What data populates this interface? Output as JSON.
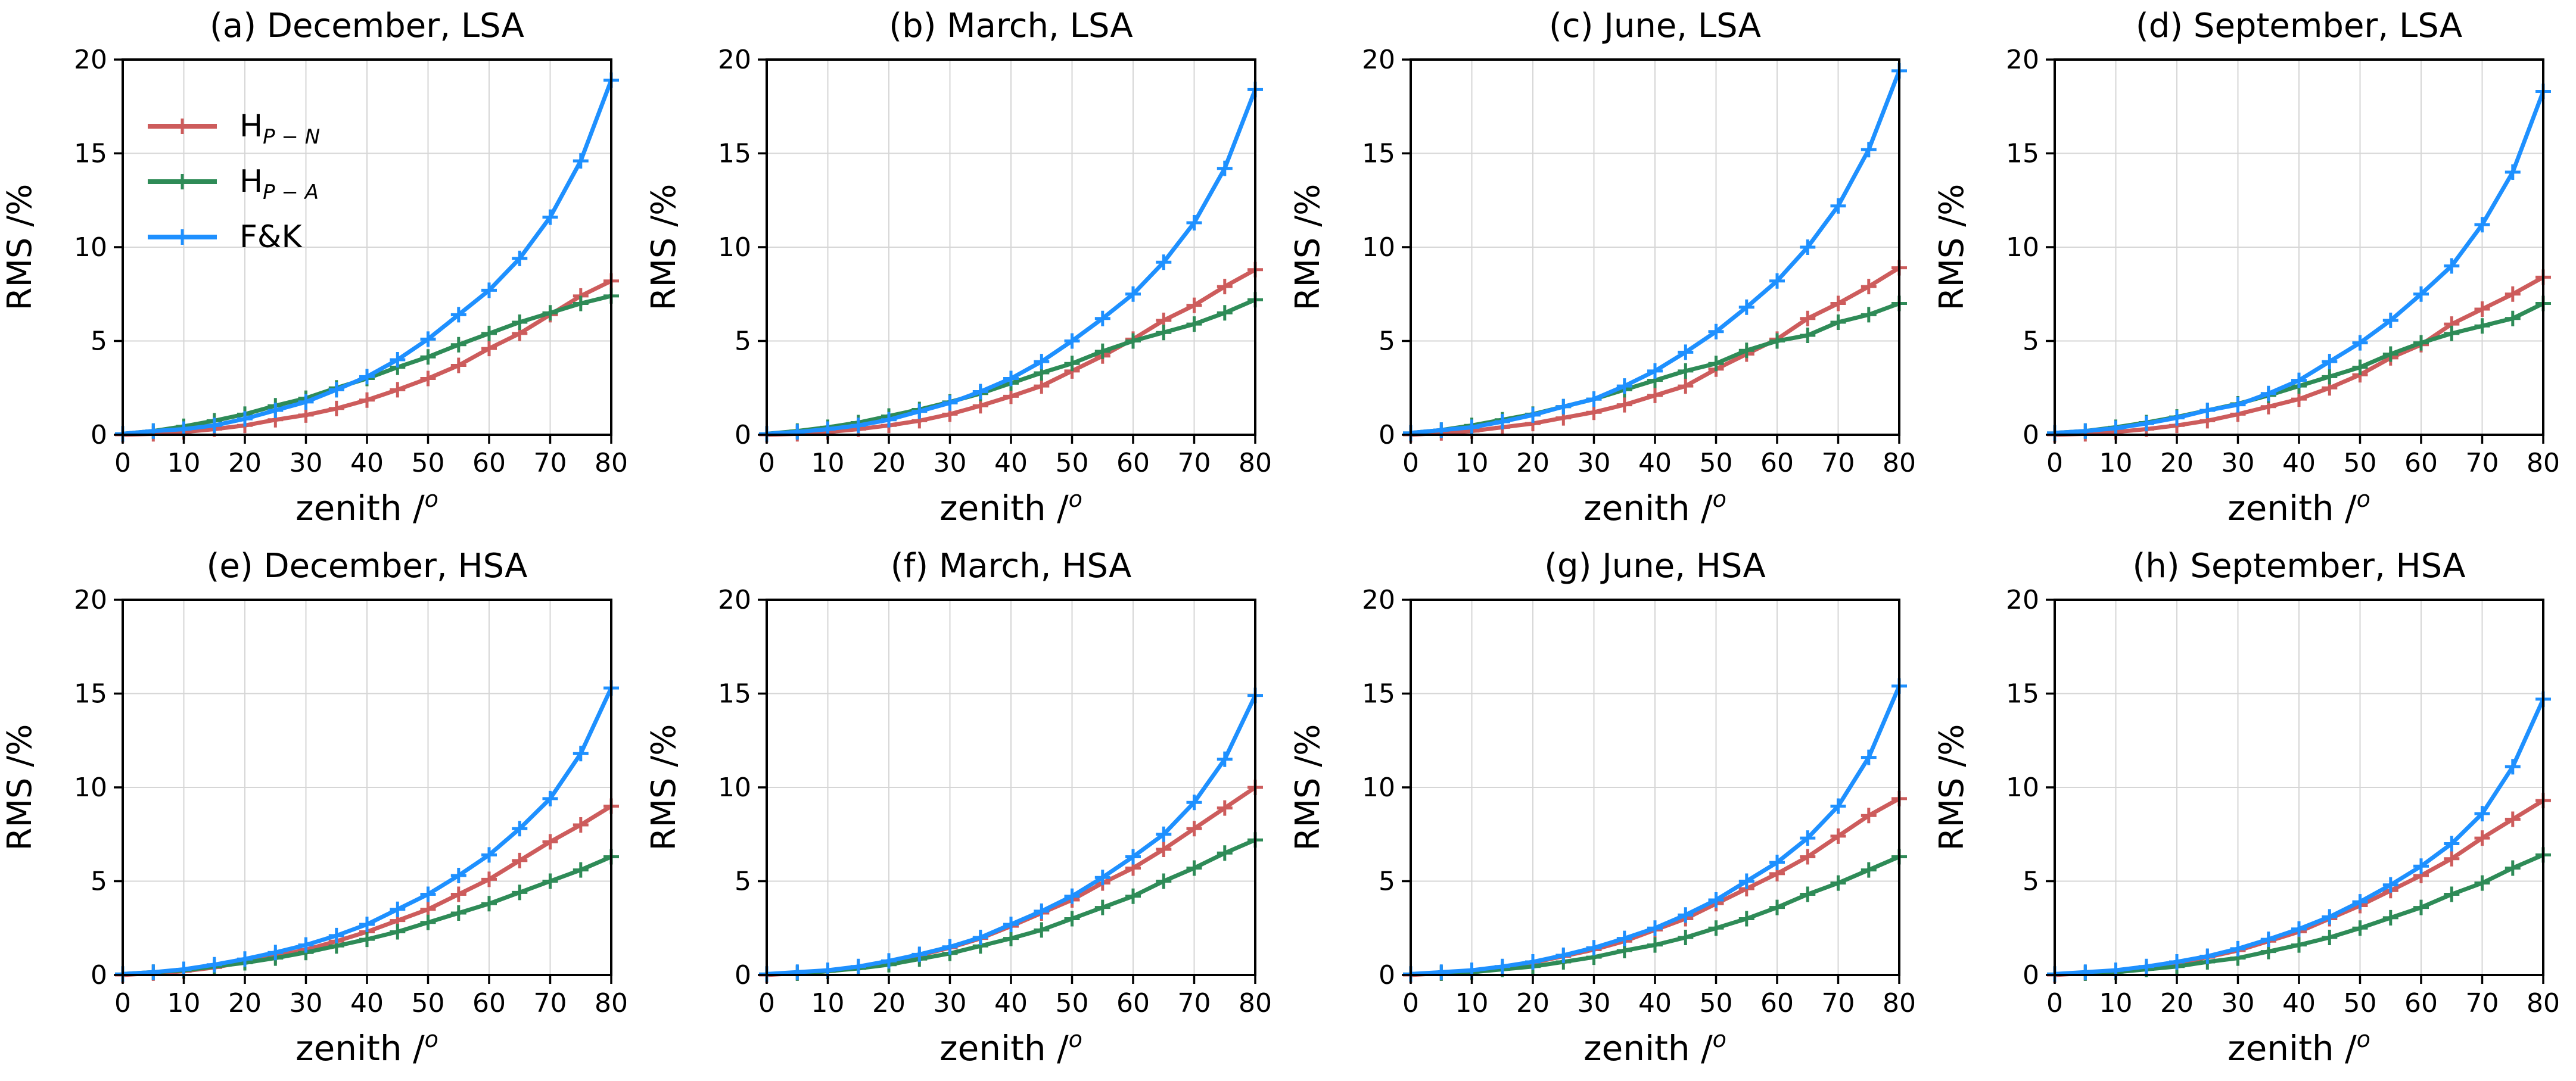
{
  "page": {
    "background": "#FFFFFF"
  },
  "colors": {
    "hpn": "#CD5C5C",
    "hpa": "#2E8B57",
    "fk": "#1E90FF",
    "grid": "#D6D6D6",
    "spine": "#000000",
    "text": "#000000"
  },
  "axes": {
    "xlabel_base": "zenith /",
    "xlabel_sup": "o",
    "ylabel": "RMS /%",
    "xlim": [
      0,
      80
    ],
    "ylim": [
      0,
      20
    ],
    "x_ticks": [
      0,
      10,
      20,
      30,
      40,
      50,
      60,
      70,
      80
    ],
    "y_ticks": [
      0,
      5,
      10,
      15,
      20
    ],
    "grid": true
  },
  "legend": {
    "position": "upper-left",
    "entries": [
      {
        "key": "hpn",
        "base": "H",
        "sub": "P − N"
      },
      {
        "key": "hpa",
        "base": "H",
        "sub": "P − A"
      },
      {
        "key": "fk",
        "base": "F&K",
        "sub": ""
      }
    ]
  },
  "chart_data": [
    {
      "id": "a",
      "type": "line",
      "title": "(a) December, LSA",
      "show_legend": true,
      "x": [
        0,
        5,
        10,
        15,
        20,
        25,
        30,
        35,
        40,
        45,
        50,
        55,
        60,
        65,
        70,
        75,
        80
      ],
      "series": [
        {
          "key": "hpn",
          "name": "H_P-N",
          "values": [
            0,
            0.05,
            0.15,
            0.3,
            0.5,
            0.8,
            1.05,
            1.4,
            1.85,
            2.4,
            3.0,
            3.7,
            4.6,
            5.4,
            6.4,
            7.4,
            8.2
          ]
        },
        {
          "key": "hpa",
          "name": "H_P-A",
          "values": [
            0.05,
            0.2,
            0.45,
            0.75,
            1.1,
            1.55,
            1.95,
            2.5,
            3.0,
            3.6,
            4.15,
            4.8,
            5.4,
            6.0,
            6.5,
            7.0,
            7.4
          ]
        },
        {
          "key": "fk",
          "name": "F&K",
          "values": [
            0.05,
            0.2,
            0.3,
            0.5,
            0.85,
            1.3,
            1.75,
            2.4,
            3.1,
            4.0,
            5.1,
            6.4,
            7.7,
            9.4,
            11.6,
            14.6,
            18.9
          ]
        }
      ]
    },
    {
      "id": "b",
      "type": "line",
      "title": "(b) March, LSA",
      "show_legend": false,
      "x": [
        0,
        5,
        10,
        15,
        20,
        25,
        30,
        35,
        40,
        45,
        50,
        55,
        60,
        65,
        70,
        75,
        80
      ],
      "series": [
        {
          "key": "hpn",
          "name": "H_P-N",
          "values": [
            0,
            0.05,
            0.15,
            0.3,
            0.5,
            0.75,
            1.1,
            1.55,
            2.05,
            2.6,
            3.4,
            4.2,
            5.1,
            6.1,
            6.9,
            7.9,
            8.8
          ]
        },
        {
          "key": "hpa",
          "name": "H_P-A",
          "values": [
            0.05,
            0.2,
            0.4,
            0.65,
            1.0,
            1.35,
            1.75,
            2.2,
            2.75,
            3.3,
            3.8,
            4.45,
            5.0,
            5.45,
            5.9,
            6.5,
            7.2
          ]
        },
        {
          "key": "fk",
          "name": "F&K",
          "values": [
            0.05,
            0.15,
            0.3,
            0.5,
            0.8,
            1.25,
            1.7,
            2.3,
            3.0,
            3.9,
            5.0,
            6.2,
            7.5,
            9.2,
            11.3,
            14.2,
            18.4
          ]
        }
      ]
    },
    {
      "id": "c",
      "type": "line",
      "title": "(c) June, LSA",
      "show_legend": false,
      "x": [
        0,
        5,
        10,
        15,
        20,
        25,
        30,
        35,
        40,
        45,
        50,
        55,
        60,
        65,
        70,
        75,
        80
      ],
      "series": [
        {
          "key": "hpn",
          "name": "H_P-N",
          "values": [
            0,
            0.1,
            0.2,
            0.4,
            0.6,
            0.9,
            1.2,
            1.6,
            2.1,
            2.6,
            3.5,
            4.3,
            5.1,
            6.2,
            7.0,
            7.9,
            8.9
          ]
        },
        {
          "key": "hpa",
          "name": "H_P-A",
          "values": [
            0.1,
            0.25,
            0.5,
            0.8,
            1.1,
            1.5,
            1.9,
            2.4,
            2.9,
            3.4,
            3.8,
            4.5,
            5.0,
            5.3,
            6.0,
            6.4,
            7.0
          ]
        },
        {
          "key": "fk",
          "name": "F&K",
          "values": [
            0.1,
            0.25,
            0.4,
            0.7,
            1.05,
            1.5,
            1.9,
            2.6,
            3.4,
            4.4,
            5.5,
            6.8,
            8.2,
            10.0,
            12.2,
            15.2,
            19.4
          ]
        }
      ]
    },
    {
      "id": "d",
      "type": "line",
      "title": "(d) September, LSA",
      "show_legend": false,
      "x": [
        0,
        5,
        10,
        15,
        20,
        25,
        30,
        35,
        40,
        45,
        50,
        55,
        60,
        65,
        70,
        75,
        80
      ],
      "series": [
        {
          "key": "hpn",
          "name": "H_P-N",
          "values": [
            0,
            0.05,
            0.15,
            0.3,
            0.5,
            0.75,
            1.1,
            1.5,
            1.9,
            2.5,
            3.2,
            4.1,
            4.8,
            5.9,
            6.7,
            7.5,
            8.4
          ]
        },
        {
          "key": "hpa",
          "name": "H_P-A",
          "values": [
            0.1,
            0.2,
            0.4,
            0.65,
            0.95,
            1.3,
            1.65,
            2.1,
            2.6,
            3.1,
            3.6,
            4.3,
            4.9,
            5.4,
            5.8,
            6.2,
            7.0
          ]
        },
        {
          "key": "fk",
          "name": "F&K",
          "values": [
            0.1,
            0.2,
            0.35,
            0.6,
            0.9,
            1.3,
            1.6,
            2.2,
            2.9,
            3.9,
            4.9,
            6.1,
            7.5,
            9.0,
            11.2,
            14.0,
            18.3
          ]
        }
      ]
    },
    {
      "id": "e",
      "type": "line",
      "title": "(e) December, HSA",
      "show_legend": false,
      "x": [
        0,
        5,
        10,
        15,
        20,
        25,
        30,
        35,
        40,
        45,
        50,
        55,
        60,
        65,
        70,
        75,
        80
      ],
      "series": [
        {
          "key": "hpn",
          "name": "H_P-N",
          "values": [
            0,
            0.1,
            0.2,
            0.4,
            0.7,
            1.0,
            1.35,
            1.8,
            2.3,
            2.9,
            3.5,
            4.3,
            5.1,
            6.1,
            7.1,
            8.0,
            9.0
          ]
        },
        {
          "key": "hpa",
          "name": "H_P-A",
          "values": [
            0.05,
            0.15,
            0.25,
            0.45,
            0.65,
            0.9,
            1.2,
            1.55,
            1.9,
            2.3,
            2.8,
            3.3,
            3.8,
            4.4,
            5.0,
            5.6,
            6.3
          ]
        },
        {
          "key": "fk",
          "name": "F&K",
          "values": [
            0.05,
            0.15,
            0.3,
            0.55,
            0.85,
            1.2,
            1.6,
            2.1,
            2.7,
            3.5,
            4.3,
            5.3,
            6.4,
            7.8,
            9.4,
            11.8,
            15.3
          ]
        }
      ]
    },
    {
      "id": "f",
      "type": "line",
      "title": "(f) March, HSA",
      "show_legend": false,
      "x": [
        0,
        5,
        10,
        15,
        20,
        25,
        30,
        35,
        40,
        45,
        50,
        55,
        60,
        65,
        70,
        75,
        80
      ],
      "series": [
        {
          "key": "hpn",
          "name": "H_P-N",
          "values": [
            0,
            0.1,
            0.2,
            0.4,
            0.7,
            1.05,
            1.45,
            1.95,
            2.6,
            3.3,
            4.0,
            4.9,
            5.7,
            6.7,
            7.8,
            8.9,
            10.0
          ]
        },
        {
          "key": "hpa",
          "name": "H_P-A",
          "values": [
            0.05,
            0.1,
            0.2,
            0.35,
            0.55,
            0.85,
            1.15,
            1.55,
            1.95,
            2.4,
            3.0,
            3.6,
            4.2,
            5.0,
            5.7,
            6.5,
            7.2
          ]
        },
        {
          "key": "fk",
          "name": "F&K",
          "values": [
            0.05,
            0.15,
            0.25,
            0.45,
            0.75,
            1.1,
            1.5,
            2.0,
            2.7,
            3.4,
            4.2,
            5.2,
            6.3,
            7.5,
            9.2,
            11.5,
            14.9
          ]
        }
      ]
    },
    {
      "id": "g",
      "type": "line",
      "title": "(g) June, HSA",
      "show_legend": false,
      "x": [
        0,
        5,
        10,
        15,
        20,
        25,
        30,
        35,
        40,
        45,
        50,
        55,
        60,
        65,
        70,
        75,
        80
      ],
      "series": [
        {
          "key": "hpn",
          "name": "H_P-N",
          "values": [
            0,
            0.1,
            0.2,
            0.4,
            0.65,
            1.0,
            1.35,
            1.8,
            2.4,
            3.0,
            3.8,
            4.6,
            5.4,
            6.3,
            7.4,
            8.5,
            9.4
          ]
        },
        {
          "key": "hpa",
          "name": "H_P-A",
          "values": [
            0.05,
            0.1,
            0.15,
            0.3,
            0.45,
            0.7,
            0.95,
            1.3,
            1.6,
            2.0,
            2.5,
            3.0,
            3.6,
            4.3,
            4.9,
            5.6,
            6.3
          ]
        },
        {
          "key": "fk",
          "name": "F&K",
          "values": [
            0.05,
            0.15,
            0.25,
            0.45,
            0.7,
            1.05,
            1.45,
            1.95,
            2.5,
            3.2,
            4.0,
            5.0,
            6.0,
            7.3,
            9.0,
            11.6,
            15.4
          ]
        }
      ]
    },
    {
      "id": "h",
      "type": "line",
      "title": "(h) September, HSA",
      "show_legend": false,
      "x": [
        0,
        5,
        10,
        15,
        20,
        25,
        30,
        35,
        40,
        45,
        50,
        55,
        60,
        65,
        70,
        75,
        80
      ],
      "series": [
        {
          "key": "hpn",
          "name": "H_P-N",
          "values": [
            0,
            0.1,
            0.2,
            0.35,
            0.6,
            0.95,
            1.3,
            1.8,
            2.3,
            3.0,
            3.7,
            4.5,
            5.3,
            6.2,
            7.3,
            8.3,
            9.3
          ]
        },
        {
          "key": "hpa",
          "name": "H_P-A",
          "values": [
            0.05,
            0.1,
            0.15,
            0.3,
            0.45,
            0.7,
            0.9,
            1.25,
            1.6,
            2.0,
            2.5,
            3.05,
            3.6,
            4.3,
            4.9,
            5.7,
            6.4
          ]
        },
        {
          "key": "fk",
          "name": "F&K",
          "values": [
            0.05,
            0.15,
            0.25,
            0.45,
            0.7,
            1.0,
            1.4,
            1.9,
            2.45,
            3.1,
            3.9,
            4.8,
            5.8,
            7.0,
            8.6,
            11.1,
            14.7
          ]
        }
      ]
    }
  ]
}
